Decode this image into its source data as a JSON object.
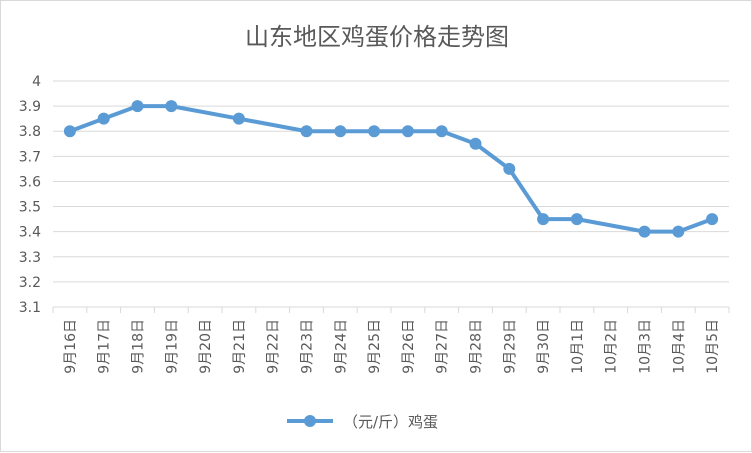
{
  "chart_data": {
    "type": "line",
    "title": "山东地区鸡蛋价格走势图",
    "xlabel": "",
    "ylabel": "",
    "categories": [
      "9月16日",
      "9月17日",
      "9月18日",
      "9月19日",
      "9月20日",
      "9月21日",
      "9月22日",
      "9月23日",
      "9月24日",
      "9月25日",
      "9月26日",
      "9月27日",
      "9月28日",
      "9月29日",
      "9月30日",
      "10月1日",
      "10月2日",
      "10月3日",
      "10月4日",
      "10月5日"
    ],
    "series": [
      {
        "name": "（元/斤）鸡蛋",
        "values": [
          3.8,
          3.85,
          3.9,
          3.9,
          null,
          3.85,
          null,
          3.8,
          3.8,
          3.8,
          3.8,
          3.8,
          3.75,
          3.65,
          3.45,
          3.45,
          null,
          3.4,
          3.4,
          3.45
        ]
      }
    ],
    "ylim": [
      3.1,
      4.0
    ],
    "yticks": [
      "3.1",
      "3.2",
      "3.3",
      "3.4",
      "3.5",
      "3.6",
      "3.7",
      "3.8",
      "3.9",
      "4"
    ],
    "grid": true,
    "legend_position": "bottom",
    "colors": {
      "series": "#5b9bd5",
      "grid": "#d9d9d9",
      "text": "#595959"
    }
  }
}
